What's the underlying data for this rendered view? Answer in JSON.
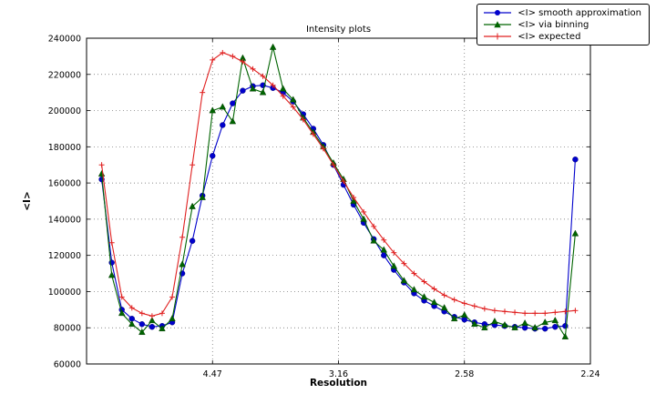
{
  "chart_data": {
    "type": "line",
    "title": "Intensity plots",
    "xlabel": "Resolution",
    "ylabel": "<I>",
    "grid": true,
    "legend_position": "upper right",
    "xlim": [
      0,
      0.2
    ],
    "ylim": [
      60000,
      240000
    ],
    "xticks": [
      {
        "value": 0.05,
        "label": "4.47"
      },
      {
        "value": 0.1,
        "label": "3.16"
      },
      {
        "value": 0.15,
        "label": "2.58"
      },
      {
        "value": 0.2,
        "label": "2.24"
      }
    ],
    "yticks": [
      {
        "value": 60000,
        "label": "60000"
      },
      {
        "value": 80000,
        "label": "80000"
      },
      {
        "value": 100000,
        "label": "100000"
      },
      {
        "value": 120000,
        "label": "120000"
      },
      {
        "value": 140000,
        "label": "140000"
      },
      {
        "value": 160000,
        "label": "160000"
      },
      {
        "value": 180000,
        "label": "180000"
      },
      {
        "value": 200000,
        "label": "200000"
      },
      {
        "value": 220000,
        "label": "220000"
      },
      {
        "value": 240000,
        "label": "240000"
      }
    ],
    "x": [
      0.006,
      0.01,
      0.014,
      0.018,
      0.022,
      0.026,
      0.03,
      0.034,
      0.038,
      0.042,
      0.046,
      0.05,
      0.054,
      0.058,
      0.062,
      0.066,
      0.07,
      0.074,
      0.078,
      0.082,
      0.086,
      0.09,
      0.094,
      0.098,
      0.102,
      0.106,
      0.11,
      0.114,
      0.118,
      0.122,
      0.126,
      0.13,
      0.134,
      0.138,
      0.142,
      0.146,
      0.15,
      0.154,
      0.158,
      0.162,
      0.166,
      0.17,
      0.174,
      0.178,
      0.182,
      0.186,
      0.19,
      0.194
    ],
    "series": [
      {
        "name": "<I> smooth approximation",
        "color": "#0000cc",
        "marker": "circle",
        "values": [
          162000,
          116000,
          90000,
          85000,
          82000,
          80500,
          81000,
          83000,
          110000,
          128000,
          153000,
          175000,
          192000,
          204000,
          211000,
          213500,
          214000,
          212500,
          210000,
          205000,
          198000,
          190000,
          181000,
          170000,
          159000,
          148000,
          138000,
          129000,
          120000,
          112000,
          105000,
          99000,
          95000,
          92000,
          89000,
          86000,
          84500,
          83000,
          82000,
          81500,
          81000,
          80500,
          80000,
          79500,
          79500,
          80500,
          81000,
          173000
        ]
      },
      {
        "name": "<I> via binning",
        "color": "#006400",
        "marker": "triangle",
        "values": [
          165000,
          109000,
          88000,
          82000,
          77500,
          84000,
          79500,
          85000,
          115000,
          147000,
          152000,
          200000,
          202000,
          194000,
          229000,
          212000,
          210000,
          235000,
          212000,
          206000,
          196000,
          188000,
          180000,
          171000,
          162000,
          150000,
          140000,
          128000,
          123000,
          114000,
          106000,
          101000,
          97000,
          94000,
          91000,
          85000,
          87000,
          82000,
          80000,
          83500,
          81500,
          80000,
          82500,
          80000,
          83000,
          84000,
          75000,
          132000
        ]
      },
      {
        "name": "<I> expected",
        "color": "#e02020",
        "marker": "plus",
        "values": [
          170000,
          127000,
          97000,
          91000,
          88000,
          86500,
          88000,
          97000,
          130000,
          170000,
          210000,
          228000,
          232000,
          230000,
          227000,
          223000,
          219000,
          214000,
          208000,
          202000,
          195000,
          187000,
          179000,
          170000,
          161000,
          152000,
          144000,
          136000,
          128500,
          121500,
          115500,
          110000,
          105500,
          101500,
          98000,
          95500,
          93500,
          92000,
          90500,
          89500,
          89000,
          88500,
          88000,
          88000,
          88000,
          88500,
          89000,
          89500
        ]
      }
    ]
  }
}
